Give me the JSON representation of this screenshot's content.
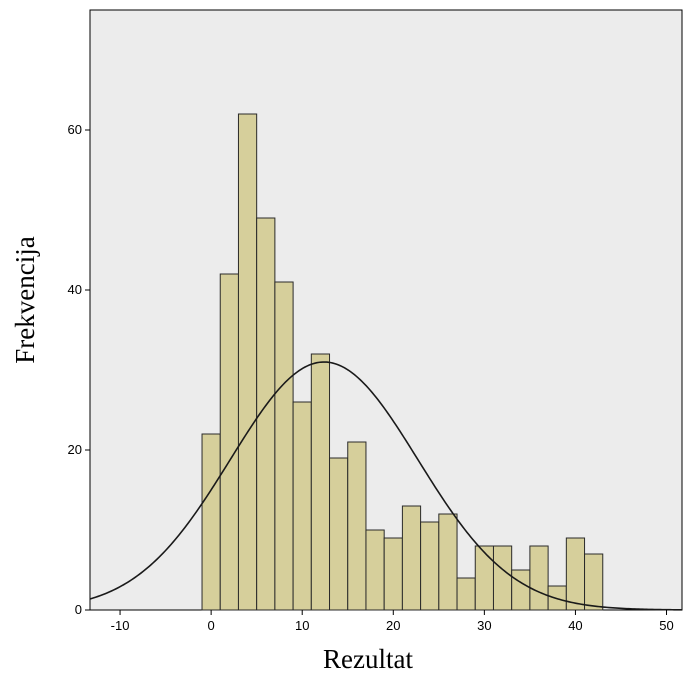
{
  "chart_data": {
    "type": "bar",
    "title": "",
    "xlabel": "Rezultat",
    "ylabel": "Frekvencija",
    "xlim": [
      -13.3,
      51.7
    ],
    "ylim": [
      0,
      75
    ],
    "x_ticks": [
      -10,
      0,
      10,
      20,
      30,
      40,
      50
    ],
    "y_ticks": [
      0,
      20,
      40,
      60
    ],
    "bin_width": 2,
    "bins": [
      {
        "start": -1,
        "end": 1,
        "count": 22
      },
      {
        "start": 1,
        "end": 3,
        "count": 42
      },
      {
        "start": 3,
        "end": 5,
        "count": 62
      },
      {
        "start": 5,
        "end": 7,
        "count": 49
      },
      {
        "start": 7,
        "end": 9,
        "count": 41
      },
      {
        "start": 9,
        "end": 11,
        "count": 26
      },
      {
        "start": 11,
        "end": 13,
        "count": 32
      },
      {
        "start": 13,
        "end": 15,
        "count": 19
      },
      {
        "start": 15,
        "end": 17,
        "count": 21
      },
      {
        "start": 17,
        "end": 19,
        "count": 10
      },
      {
        "start": 19,
        "end": 21,
        "count": 9
      },
      {
        "start": 21,
        "end": 23,
        "count": 13
      },
      {
        "start": 23,
        "end": 25,
        "count": 11
      },
      {
        "start": 25,
        "end": 27,
        "count": 12
      },
      {
        "start": 27,
        "end": 29,
        "count": 4
      },
      {
        "start": 29,
        "end": 31,
        "count": 8
      },
      {
        "start": 31,
        "end": 33,
        "count": 8
      },
      {
        "start": 33,
        "end": 35,
        "count": 5
      },
      {
        "start": 35,
        "end": 37,
        "count": 8
      },
      {
        "start": 37,
        "end": 39,
        "count": 3
      },
      {
        "start": 39,
        "end": 41,
        "count": 9
      },
      {
        "start": 41,
        "end": 43,
        "count": 7
      }
    ],
    "normal_curve": {
      "mean": 12.4,
      "sd": 10.3,
      "peak": 31
    },
    "grid": false,
    "colors": {
      "bar_fill": "#d6cf9b",
      "bar_stroke": "#2a2a2a",
      "plot_background": "#ececec",
      "curve": "#1a1a1a"
    }
  }
}
